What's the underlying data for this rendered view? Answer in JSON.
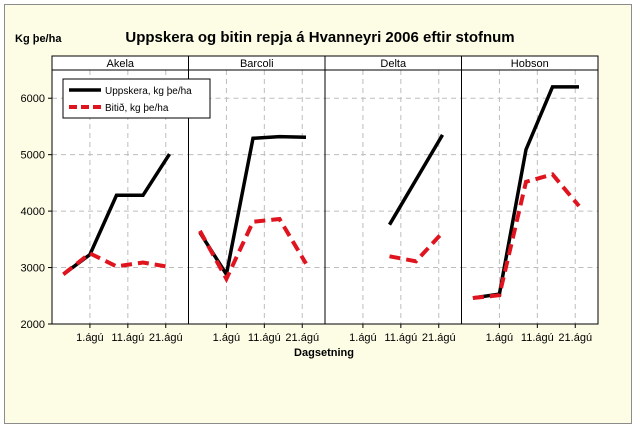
{
  "chart_data": {
    "type": "line",
    "title": "Uppskera og bitin repja á Hvanneyri 2006 eftir stofnum",
    "ylabel": "Kg þe/ha",
    "xlabel": "Dagsetning",
    "ylim": [
      2000,
      6500
    ],
    "yticks": [
      2000,
      3000,
      4000,
      5000,
      6000
    ],
    "xticks": [
      "1.ágú",
      "11.ágú",
      "21.ágú"
    ],
    "grid": true,
    "legend_position": "top-left",
    "colors": {
      "uppskera": "#000000",
      "bitid": "#e0141e",
      "grid": "#bdbdbd"
    },
    "series_names": [
      "Uppskera, kg þe/ha",
      "Bitið, kg þe/ha"
    ],
    "panels": [
      {
        "name": "Akela",
        "series": [
          {
            "name": "Uppskera, kg þe/ha",
            "x": [
              -7,
              0,
              7,
              14,
              21
            ],
            "values": [
              2880,
              3230,
              4280,
              4280,
              5010
            ]
          },
          {
            "name": "Bitið, kg þe/ha",
            "x": [
              -7,
              0,
              7,
              14,
              21
            ],
            "values": [
              2880,
              3250,
              3020,
              3090,
              3010
            ]
          }
        ]
      },
      {
        "name": "Barcoli",
        "series": [
          {
            "name": "Uppskera, kg þe/ha",
            "x": [
              -7,
              0,
              7,
              14,
              21
            ],
            "values": [
              3620,
              2880,
              5290,
              5320,
              5310
            ]
          },
          {
            "name": "Bitið, kg þe/ha",
            "x": [
              -7,
              0,
              7,
              14,
              21
            ],
            "values": [
              3650,
              2800,
              3810,
              3860,
              3070
            ]
          }
        ]
      },
      {
        "name": "Delta",
        "series": [
          {
            "name": "Uppskera, kg þe/ha",
            "x": [
              7,
              21
            ],
            "values": [
              3760,
              5350
            ]
          },
          {
            "name": "Bitið, kg þe/ha",
            "x": [
              7,
              14,
              21
            ],
            "values": [
              3200,
              3110,
              3620
            ]
          }
        ]
      },
      {
        "name": "Hobson",
        "series": [
          {
            "name": "Uppskera, kg þe/ha",
            "x": [
              -7,
              0,
              7,
              14,
              21
            ],
            "values": [
              2460,
              2530,
              5090,
              6200,
              6200
            ]
          },
          {
            "name": "Bitið, kg þe/ha",
            "x": [
              -7,
              0,
              7,
              14,
              21
            ],
            "values": [
              2460,
              2510,
              4520,
              4650,
              4090
            ]
          }
        ]
      }
    ]
  }
}
